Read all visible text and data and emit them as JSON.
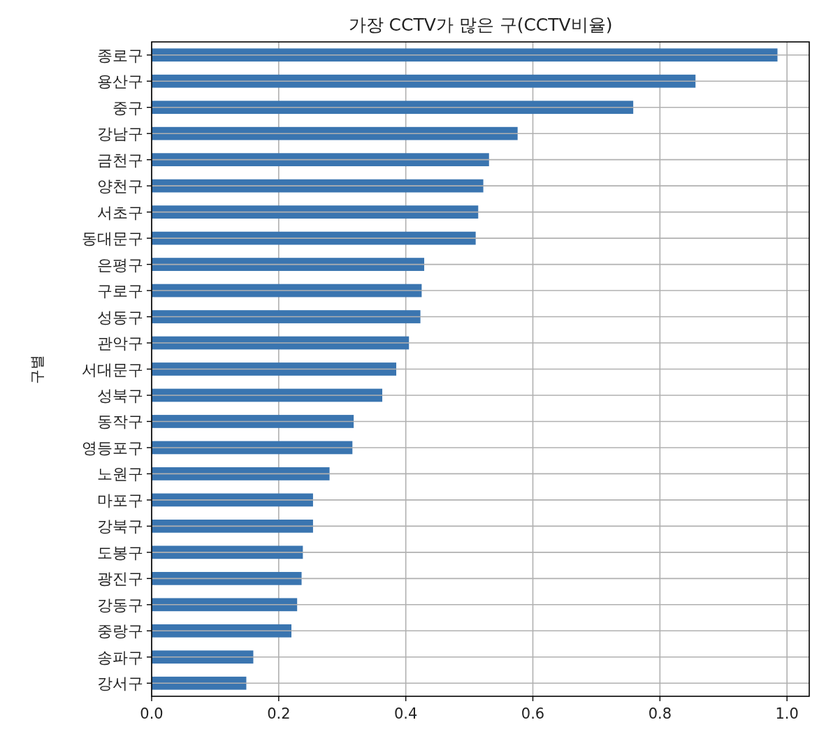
{
  "chart_data": {
    "type": "bar",
    "orientation": "horizontal",
    "title": "가장 CCTV가 많은 구(CCTV비율)",
    "ylabel": "구별",
    "categories": [
      "종로구",
      "용산구",
      "중구",
      "강남구",
      "금천구",
      "양천구",
      "서초구",
      "동대문구",
      "은평구",
      "구로구",
      "성동구",
      "관악구",
      "서대문구",
      "성북구",
      "동작구",
      "영등포구",
      "노원구",
      "마포구",
      "강북구",
      "도봉구",
      "광진구",
      "강동구",
      "중랑구",
      "송파구",
      "강서구"
    ],
    "values": [
      0.985,
      0.856,
      0.758,
      0.576,
      0.531,
      0.522,
      0.514,
      0.51,
      0.429,
      0.425,
      0.423,
      0.405,
      0.385,
      0.363,
      0.318,
      0.316,
      0.28,
      0.254,
      0.254,
      0.238,
      0.236,
      0.229,
      0.22,
      0.16,
      0.149
    ],
    "color": "#3a75b0",
    "xlim": [
      0,
      1.035
    ],
    "xticks": [
      {
        "value": 0,
        "label": "0.0"
      },
      0.2,
      0.4,
      0.6,
      0.8,
      {
        "value": 1,
        "label": "1.0"
      }
    ],
    "grid": true
  }
}
